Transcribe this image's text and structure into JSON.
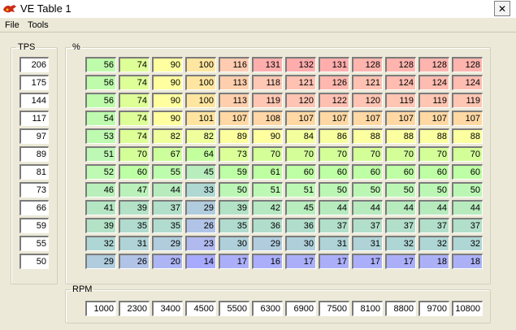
{
  "window": {
    "title": "VE Table 1",
    "close_glyph": "✕",
    "accent_icon_color": "#cc2a1a"
  },
  "menu": {
    "items": [
      {
        "label": "File"
      },
      {
        "label": "Tools"
      }
    ]
  },
  "tps": {
    "legend": "TPS",
    "values": [
      "206",
      "175",
      "144",
      "117",
      "97",
      "89",
      "81",
      "73",
      "66",
      "59",
      "55",
      "50"
    ]
  },
  "table": {
    "legend": "%",
    "rows": [
      [
        "56",
        "74",
        "90",
        "100",
        "116",
        "131",
        "132",
        "131",
        "128",
        "128",
        "128",
        "128"
      ],
      [
        "56",
        "74",
        "90",
        "100",
        "113",
        "118",
        "121",
        "126",
        "121",
        "124",
        "124",
        "124"
      ],
      [
        "56",
        "74",
        "90",
        "100",
        "113",
        "119",
        "120",
        "122",
        "120",
        "119",
        "119",
        "119"
      ],
      [
        "54",
        "74",
        "90",
        "101",
        "107",
        "108",
        "107",
        "107",
        "107",
        "107",
        "107",
        "107"
      ],
      [
        "53",
        "74",
        "82",
        "82",
        "89",
        "90",
        "84",
        "86",
        "88",
        "88",
        "88",
        "88"
      ],
      [
        "51",
        "70",
        "67",
        "64",
        "73",
        "70",
        "70",
        "70",
        "70",
        "70",
        "70",
        "70"
      ],
      [
        "52",
        "60",
        "55",
        "45",
        "59",
        "61",
        "60",
        "60",
        "60",
        "60",
        "60",
        "60"
      ],
      [
        "46",
        "47",
        "44",
        "33",
        "50",
        "51",
        "51",
        "50",
        "50",
        "50",
        "50",
        "50"
      ],
      [
        "41",
        "39",
        "37",
        "29",
        "39",
        "42",
        "45",
        "44",
        "44",
        "44",
        "44",
        "44"
      ],
      [
        "39",
        "35",
        "35",
        "26",
        "35",
        "36",
        "36",
        "37",
        "37",
        "37",
        "37",
        "37"
      ],
      [
        "32",
        "31",
        "29",
        "23",
        "30",
        "29",
        "30",
        "31",
        "31",
        "32",
        "32",
        "32"
      ],
      [
        "29",
        "26",
        "20",
        "14",
        "17",
        "16",
        "17",
        "17",
        "17",
        "17",
        "18",
        "18"
      ]
    ]
  },
  "rpm": {
    "legend": "RPM",
    "values": [
      "1000",
      "2300",
      "3400",
      "4500",
      "5500",
      "6300",
      "6900",
      "7500",
      "8100",
      "8800",
      "9700",
      "10800"
    ]
  }
}
